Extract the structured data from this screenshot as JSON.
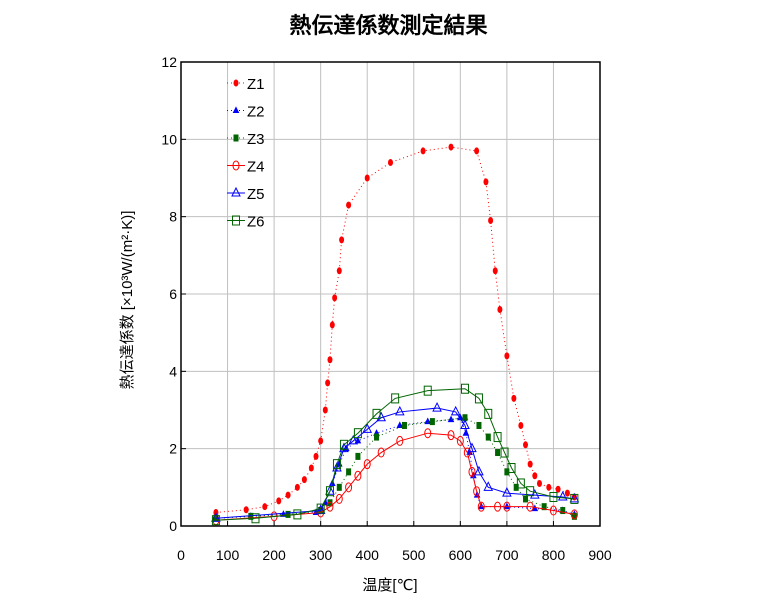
{
  "chart_data": {
    "type": "line",
    "title": "熱伝達係数測定結果",
    "xlabel": "温度[℃]",
    "ylabel": "熱伝達係数 [×10³W/(m²·K)]",
    "xlim": [
      0,
      900
    ],
    "ylim": [
      0,
      12
    ],
    "xticks": [
      0,
      100,
      200,
      300,
      400,
      500,
      600,
      700,
      800,
      900
    ],
    "yticks": [
      0,
      2,
      4,
      6,
      8,
      10,
      12
    ],
    "grid": true,
    "legend_position": "top-left",
    "series": [
      {
        "name": "Z1",
        "color": "#ff0000",
        "line": "dotted",
        "marker": "circle-filled",
        "points": [
          [
            75,
            0.35
          ],
          [
            140,
            0.42
          ],
          [
            180,
            0.5
          ],
          [
            210,
            0.65
          ],
          [
            230,
            0.8
          ],
          [
            250,
            1.0
          ],
          [
            265,
            1.2
          ],
          [
            280,
            1.5
          ],
          [
            290,
            1.8
          ],
          [
            300,
            2.2
          ],
          [
            310,
            3.0
          ],
          [
            315,
            3.7
          ],
          [
            320,
            4.3
          ],
          [
            325,
            5.2
          ],
          [
            330,
            5.9
          ],
          [
            340,
            6.6
          ],
          [
            345,
            7.4
          ],
          [
            360,
            8.3
          ],
          [
            400,
            9.0
          ],
          [
            450,
            9.4
          ],
          [
            520,
            9.7
          ],
          [
            580,
            9.8
          ],
          [
            635,
            9.7
          ],
          [
            655,
            8.9
          ],
          [
            665,
            7.9
          ],
          [
            675,
            6.6
          ],
          [
            685,
            5.6
          ],
          [
            700,
            4.4
          ],
          [
            715,
            3.3
          ],
          [
            730,
            2.6
          ],
          [
            740,
            2.1
          ],
          [
            750,
            1.6
          ],
          [
            760,
            1.3
          ],
          [
            770,
            1.1
          ],
          [
            790,
            1.0
          ],
          [
            810,
            0.95
          ],
          [
            830,
            0.85
          ],
          [
            845,
            0.75
          ]
        ]
      },
      {
        "name": "Z2",
        "color": "#0000ff",
        "line": "dotted",
        "marker": "triangle-filled",
        "points": [
          [
            75,
            0.2
          ],
          [
            150,
            0.25
          ],
          [
            220,
            0.3
          ],
          [
            290,
            0.35
          ],
          [
            310,
            0.6
          ],
          [
            325,
            1.1
          ],
          [
            340,
            1.6
          ],
          [
            355,
            2.0
          ],
          [
            380,
            2.2
          ],
          [
            420,
            2.4
          ],
          [
            470,
            2.6
          ],
          [
            530,
            2.7
          ],
          [
            580,
            2.75
          ],
          [
            600,
            2.8
          ],
          [
            612,
            2.4
          ],
          [
            620,
            1.9
          ],
          [
            628,
            1.3
          ],
          [
            636,
            0.8
          ],
          [
            645,
            0.5
          ],
          [
            700,
            0.5
          ],
          [
            760,
            0.45
          ],
          [
            820,
            0.4
          ],
          [
            845,
            0.3
          ]
        ]
      },
      {
        "name": "Z3",
        "color": "#006400",
        "line": "dotted",
        "marker": "square-filled",
        "points": [
          [
            75,
            0.2
          ],
          [
            150,
            0.25
          ],
          [
            230,
            0.3
          ],
          [
            300,
            0.4
          ],
          [
            320,
            0.6
          ],
          [
            340,
            1.0
          ],
          [
            360,
            1.4
          ],
          [
            380,
            1.8
          ],
          [
            420,
            2.3
          ],
          [
            480,
            2.6
          ],
          [
            540,
            2.7
          ],
          [
            610,
            2.8
          ],
          [
            640,
            2.6
          ],
          [
            660,
            2.3
          ],
          [
            680,
            1.9
          ],
          [
            700,
            1.4
          ],
          [
            720,
            1.0
          ],
          [
            740,
            0.7
          ],
          [
            780,
            0.5
          ],
          [
            820,
            0.4
          ],
          [
            845,
            0.25
          ]
        ]
      },
      {
        "name": "Z4",
        "color": "#ff0000",
        "line": "solid",
        "marker": "circle-open",
        "points": [
          [
            75,
            0.15
          ],
          [
            200,
            0.25
          ],
          [
            300,
            0.35
          ],
          [
            320,
            0.5
          ],
          [
            340,
            0.7
          ],
          [
            360,
            1.0
          ],
          [
            380,
            1.3
          ],
          [
            400,
            1.6
          ],
          [
            430,
            1.9
          ],
          [
            470,
            2.2
          ],
          [
            530,
            2.4
          ],
          [
            580,
            2.35
          ],
          [
            600,
            2.2
          ],
          [
            615,
            1.9
          ],
          [
            625,
            1.4
          ],
          [
            635,
            0.9
          ],
          [
            645,
            0.5
          ],
          [
            680,
            0.5
          ],
          [
            700,
            0.5
          ],
          [
            750,
            0.5
          ],
          [
            800,
            0.4
          ],
          [
            845,
            0.3
          ]
        ]
      },
      {
        "name": "Z5",
        "color": "#0000ff",
        "line": "solid",
        "marker": "triangle-open",
        "points": [
          [
            75,
            0.2
          ],
          [
            300,
            0.4
          ],
          [
            320,
            0.9
          ],
          [
            335,
            1.5
          ],
          [
            350,
            2.0
          ],
          [
            370,
            2.2
          ],
          [
            400,
            2.5
          ],
          [
            430,
            2.8
          ],
          [
            470,
            2.95
          ],
          [
            550,
            3.05
          ],
          [
            590,
            2.95
          ],
          [
            610,
            2.6
          ],
          [
            625,
            2.0
          ],
          [
            640,
            1.4
          ],
          [
            660,
            1.0
          ],
          [
            700,
            0.85
          ],
          [
            760,
            0.8
          ],
          [
            820,
            0.75
          ],
          [
            845,
            0.7
          ]
        ]
      },
      {
        "name": "Z6",
        "color": "#006400",
        "line": "solid",
        "marker": "square-open",
        "points": [
          [
            75,
            0.15
          ],
          [
            160,
            0.2
          ],
          [
            250,
            0.3
          ],
          [
            300,
            0.45
          ],
          [
            320,
            0.9
          ],
          [
            335,
            1.6
          ],
          [
            350,
            2.1
          ],
          [
            380,
            2.4
          ],
          [
            420,
            2.9
          ],
          [
            460,
            3.3
          ],
          [
            530,
            3.5
          ],
          [
            610,
            3.55
          ],
          [
            640,
            3.3
          ],
          [
            660,
            2.9
          ],
          [
            680,
            2.3
          ],
          [
            695,
            1.9
          ],
          [
            710,
            1.5
          ],
          [
            730,
            1.1
          ],
          [
            750,
            0.9
          ],
          [
            800,
            0.75
          ],
          [
            845,
            0.7
          ]
        ]
      }
    ]
  }
}
